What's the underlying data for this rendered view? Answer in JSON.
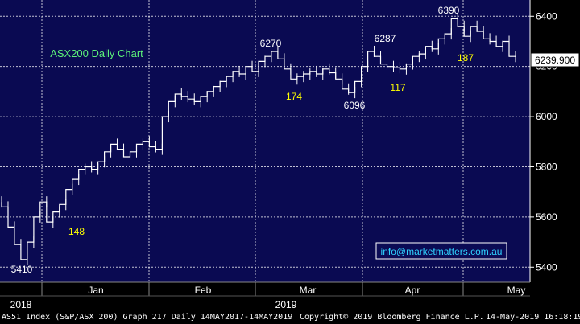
{
  "chart_data": {
    "type": "line",
    "title": "ASX200 Daily Chart",
    "ylim": [
      5340,
      6465
    ],
    "y_ticks": [
      5400,
      5600,
      5800,
      6000,
      6200,
      6400
    ],
    "y_tick_labels": [
      "5400",
      "5600",
      "5800",
      "6000",
      "6200",
      "6400"
    ],
    "grid": true,
    "last_price": "6239.900",
    "x_month_labels": [
      "Jan",
      "Feb",
      "Mar",
      "Apr",
      "May"
    ],
    "x_year_labels": [
      "2018",
      "2019"
    ],
    "annotations": [
      {
        "text": "6390",
        "kind": "price"
      },
      {
        "text": "6270",
        "kind": "price"
      },
      {
        "text": "6287",
        "kind": "price"
      },
      {
        "text": "6096",
        "kind": "price"
      },
      {
        "text": "5410",
        "kind": "price"
      },
      {
        "text": "174",
        "kind": "points"
      },
      {
        "text": "117",
        "kind": "points"
      },
      {
        "text": "187",
        "kind": "points"
      },
      {
        "text": "148",
        "kind": "points"
      }
    ],
    "watermark": "info@marketmatters.com.au",
    "series": [
      {
        "values": [
          5660,
          5640,
          5560,
          5490,
          5430,
          5500,
          5600,
          5660,
          5580,
          5620,
          5650,
          5710,
          5750,
          5790,
          5800,
          5790,
          5820,
          5860,
          5890,
          5870,
          5840,
          5860,
          5890,
          5900,
          5880,
          5870,
          6000,
          6060,
          6090,
          6080,
          6070,
          6060,
          6080,
          6100,
          6120,
          6140,
          6160,
          6180,
          6170,
          6200,
          6180,
          6220,
          6240,
          6260,
          6230,
          6190,
          6150,
          6160,
          6170,
          6180,
          6170,
          6190,
          6175,
          6150,
          6110,
          6096,
          6140,
          6200,
          6260,
          6240,
          6210,
          6200,
          6195,
          6190,
          6210,
          6240,
          6250,
          6280,
          6270,
          6310,
          6330,
          6390,
          6360,
          6320,
          6360,
          6340,
          6310,
          6300,
          6280,
          6300,
          6240
        ]
      }
    ]
  },
  "footer": {
    "left": "AS51 Index (S&P/ASX 200) Graph 217  Daily 14MAY2017-14MAY2019",
    "copyright": "Copyright© 2019 Bloomberg Finance L.P.",
    "timestamp": "14-May-2019 16:18:19"
  }
}
